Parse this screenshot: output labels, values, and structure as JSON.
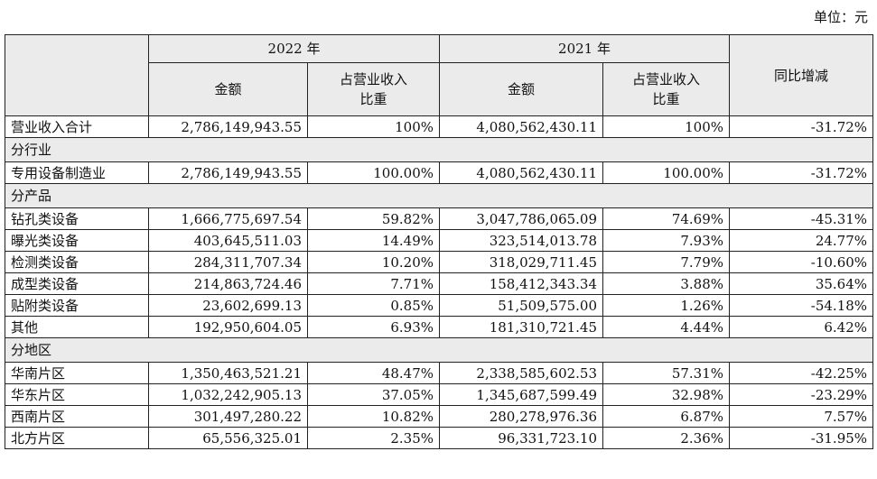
{
  "unit_label": "单位：元",
  "header": {
    "year_2022": "2022 年",
    "year_2021": "2021 年",
    "amount": "金额",
    "ratio": "占营业收入比重",
    "yoy": "同比增减"
  },
  "total": {
    "label": "营业收入合计",
    "amt_2022": "2,786,149,943.55",
    "ratio_2022": "100%",
    "amt_2021": "4,080,562,430.11",
    "ratio_2021": "100%",
    "yoy": "-31.72%"
  },
  "sections": [
    {
      "title": "分行业",
      "rows": [
        {
          "label": "专用设备制造业",
          "amt_2022": "2,786,149,943.55",
          "ratio_2022": "100.00%",
          "amt_2021": "4,080,562,430.11",
          "ratio_2021": "100.00%",
          "yoy": "-31.72%"
        }
      ]
    },
    {
      "title": "分产品",
      "rows": [
        {
          "label": "钻孔类设备",
          "amt_2022": "1,666,775,697.54",
          "ratio_2022": "59.82%",
          "amt_2021": "3,047,786,065.09",
          "ratio_2021": "74.69%",
          "yoy": "-45.31%"
        },
        {
          "label": "曝光类设备",
          "amt_2022": "403,645,511.03",
          "ratio_2022": "14.49%",
          "amt_2021": "323,514,013.78",
          "ratio_2021": "7.93%",
          "yoy": "24.77%"
        },
        {
          "label": "检测类设备",
          "amt_2022": "284,311,707.34",
          "ratio_2022": "10.20%",
          "amt_2021": "318,029,711.45",
          "ratio_2021": "7.79%",
          "yoy": "-10.60%"
        },
        {
          "label": "成型类设备",
          "amt_2022": "214,863,724.46",
          "ratio_2022": "7.71%",
          "amt_2021": "158,412,343.34",
          "ratio_2021": "3.88%",
          "yoy": "35.64%"
        },
        {
          "label": "贴附类设备",
          "amt_2022": "23,602,699.13",
          "ratio_2022": "0.85%",
          "amt_2021": "51,509,575.00",
          "ratio_2021": "1.26%",
          "yoy": "-54.18%"
        },
        {
          "label": "其他",
          "amt_2022": "192,950,604.05",
          "ratio_2022": "6.93%",
          "amt_2021": "181,310,721.45",
          "ratio_2021": "4.44%",
          "yoy": "6.42%"
        }
      ]
    },
    {
      "title": "分地区",
      "rows": [
        {
          "label": "华南片区",
          "amt_2022": "1,350,463,521.21",
          "ratio_2022": "48.47%",
          "amt_2021": "2,338,585,602.53",
          "ratio_2021": "57.31%",
          "yoy": "-42.25%"
        },
        {
          "label": "华东片区",
          "amt_2022": "1,032,242,905.13",
          "ratio_2022": "37.05%",
          "amt_2021": "1,345,687,599.49",
          "ratio_2021": "32.98%",
          "yoy": "-23.29%"
        },
        {
          "label": "西南片区",
          "amt_2022": "301,497,280.22",
          "ratio_2022": "10.82%",
          "amt_2021": "280,278,976.36",
          "ratio_2021": "6.87%",
          "yoy": "7.57%"
        },
        {
          "label": "北方片区",
          "amt_2022": "65,556,325.01",
          "ratio_2022": "2.35%",
          "amt_2021": "96,331,723.10",
          "ratio_2021": "2.36%",
          "yoy": "-31.95%"
        }
      ]
    }
  ]
}
